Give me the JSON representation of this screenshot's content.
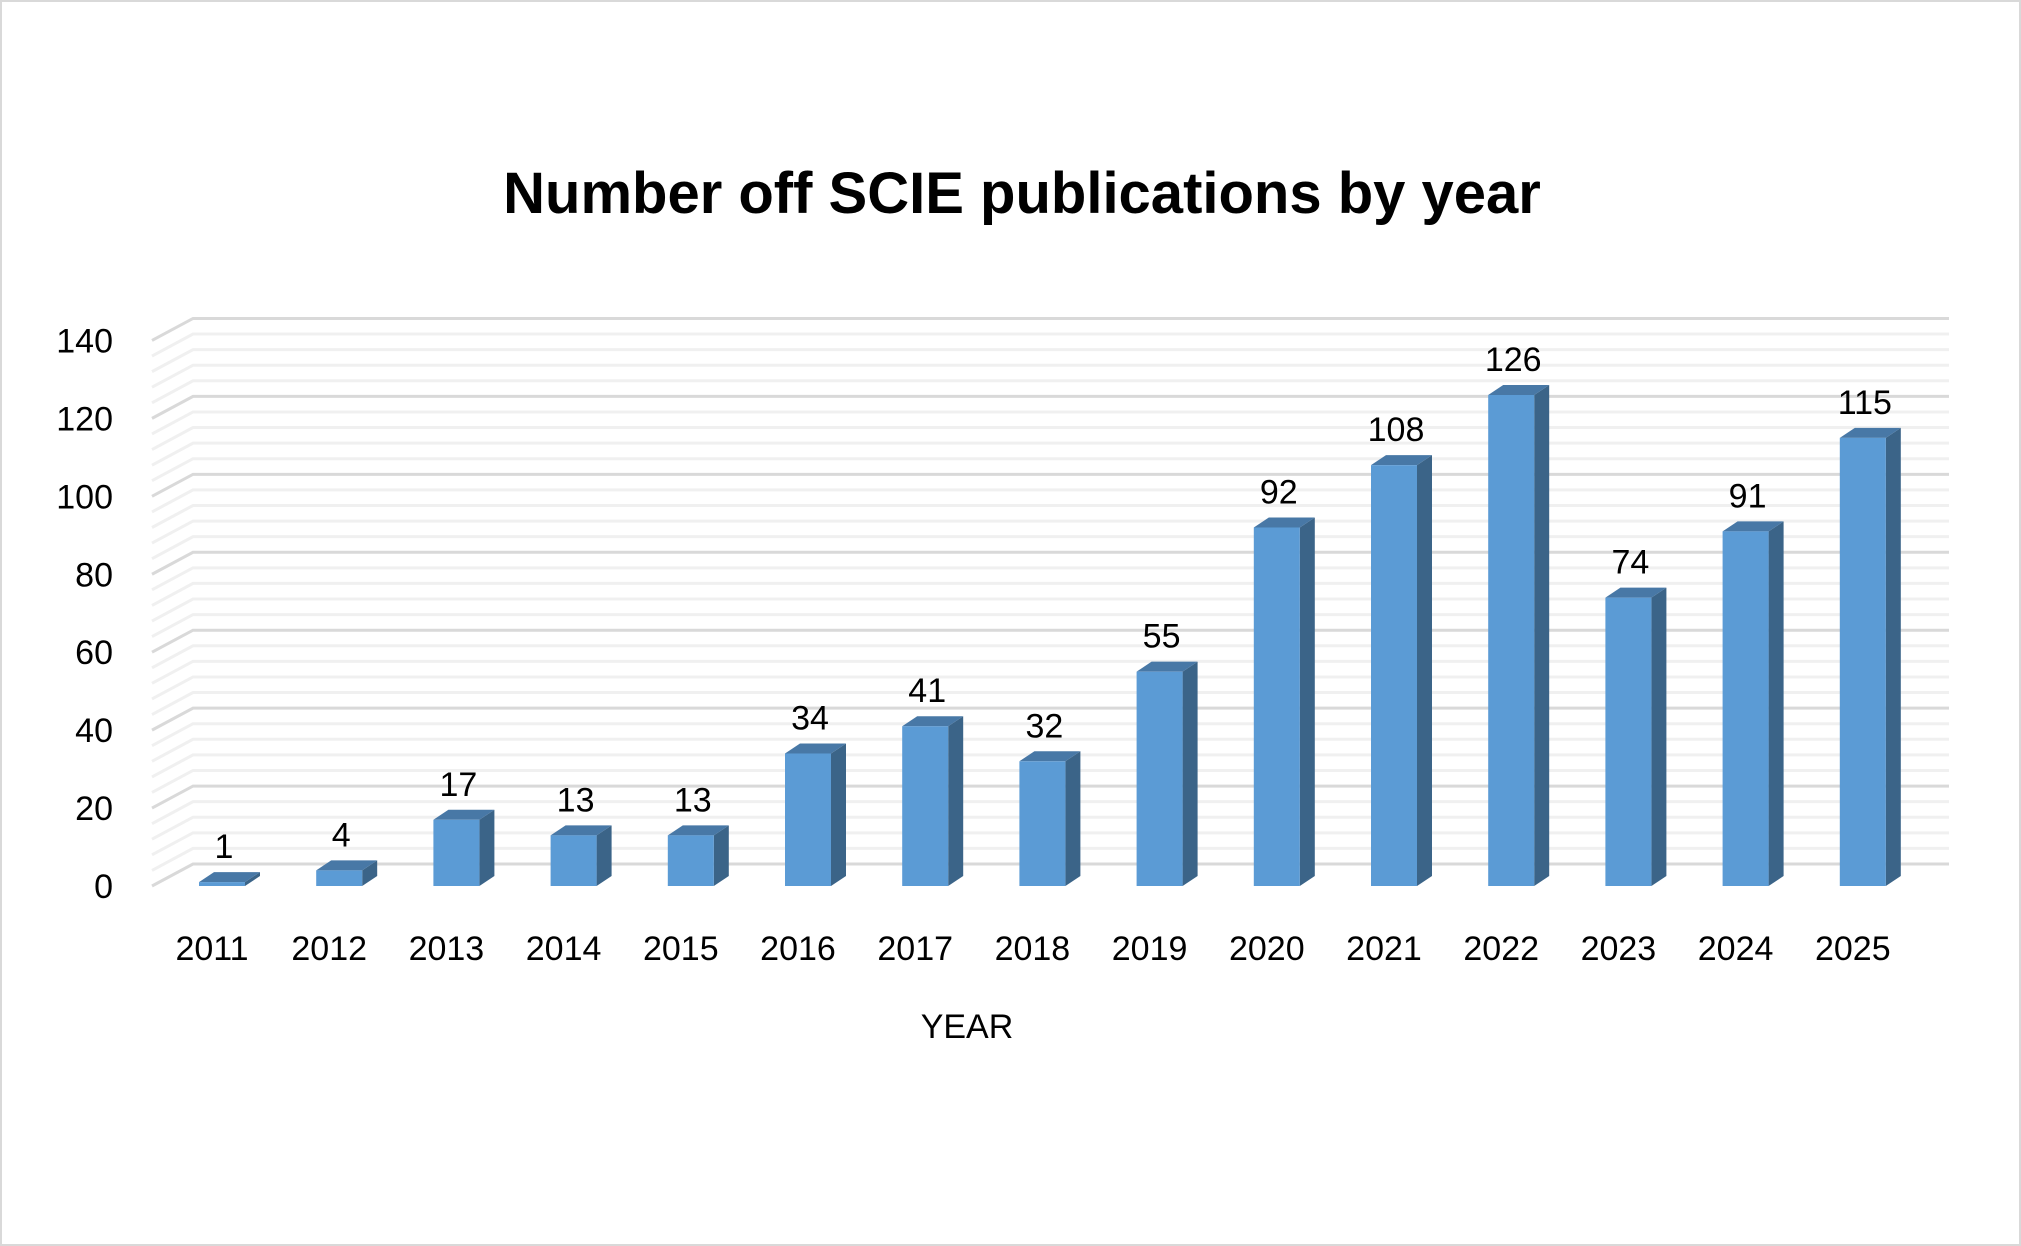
{
  "chart_data": {
    "type": "bar",
    "title": "Number off SCIE publications by year",
    "xlabel": "YEAR",
    "ylabel": "",
    "categories": [
      "2011",
      "2012",
      "2013",
      "2014",
      "2015",
      "2016",
      "2017",
      "2018",
      "2019",
      "2020",
      "2021",
      "2022",
      "2023",
      "2024",
      "2025"
    ],
    "values": [
      1,
      4,
      17,
      13,
      13,
      34,
      41,
      32,
      55,
      92,
      108,
      126,
      74,
      91,
      115
    ],
    "ylim": [
      0,
      140
    ],
    "yticks": [
      "0",
      "20",
      "40",
      "60",
      "80",
      "100",
      "120",
      "140"
    ],
    "grid": true,
    "style": "3d-column",
    "colors": {
      "front": "#5B9BD5",
      "top": "#4878A6",
      "side": "#3B6488",
      "grid_major": "#D9D9D9",
      "grid_minor": "#F0F0F0"
    }
  }
}
